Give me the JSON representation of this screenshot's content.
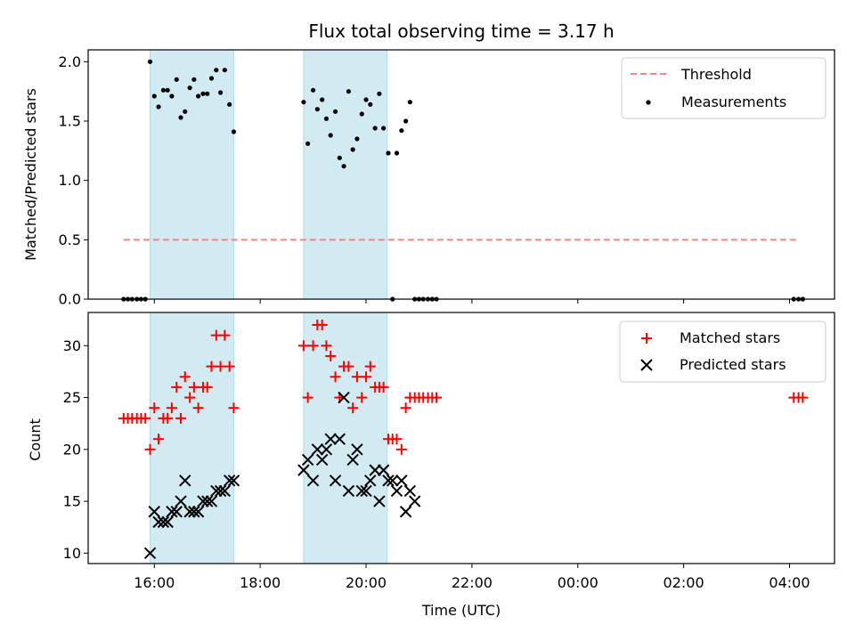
{
  "chart_data": [
    {
      "type": "scatter",
      "title": "Flux total observing time = 3.17 h",
      "xlabel": "",
      "ylabel": "Matched/Predicted stars",
      "x_unit": "hours (UTC, continuing past midnight)",
      "xlim": [
        14.75,
        28.85
      ],
      "ylim": [
        0,
        2.1
      ],
      "yticks": [
        "0.0",
        "0.5",
        "1.0",
        "1.5",
        "2.0"
      ],
      "xticks": [
        "16:00",
        "18:00",
        "20:00",
        "22:00",
        "00:00",
        "02:00",
        "04:00"
      ],
      "shaded_intervals": [
        [
          15.92,
          17.5
        ],
        [
          18.82,
          20.4
        ]
      ],
      "shade_color": "#add8e6",
      "threshold": {
        "label": "Threshold",
        "value": 0.5,
        "x_start": 15.42,
        "x_end": 28.15,
        "color": "#ff7f7f"
      },
      "measurements": {
        "label": "Measurements",
        "color": "#000000",
        "points": [
          [
            15.42,
            0
          ],
          [
            15.5,
            0
          ],
          [
            15.58,
            0
          ],
          [
            15.67,
            0
          ],
          [
            15.75,
            0
          ],
          [
            15.83,
            0
          ],
          [
            15.92,
            2.0
          ],
          [
            16.0,
            1.71
          ],
          [
            16.08,
            1.62
          ],
          [
            16.17,
            1.76
          ],
          [
            16.25,
            1.76
          ],
          [
            16.33,
            1.71
          ],
          [
            16.42,
            1.85
          ],
          [
            16.5,
            1.53
          ],
          [
            16.58,
            1.58
          ],
          [
            16.67,
            1.78
          ],
          [
            16.75,
            1.85
          ],
          [
            16.83,
            1.71
          ],
          [
            16.92,
            1.73
          ],
          [
            17.0,
            1.73
          ],
          [
            17.08,
            1.86
          ],
          [
            17.17,
            1.93
          ],
          [
            17.25,
            1.74
          ],
          [
            17.33,
            1.93
          ],
          [
            17.42,
            1.64
          ],
          [
            17.5,
            1.41
          ],
          [
            18.82,
            1.66
          ],
          [
            18.9,
            1.31
          ],
          [
            19.0,
            1.76
          ],
          [
            19.08,
            1.6
          ],
          [
            19.17,
            1.68
          ],
          [
            19.25,
            1.52
          ],
          [
            19.33,
            1.38
          ],
          [
            19.42,
            1.58
          ],
          [
            19.5,
            1.19
          ],
          [
            19.58,
            1.12
          ],
          [
            19.67,
            1.75
          ],
          [
            19.75,
            1.26
          ],
          [
            19.83,
            1.35
          ],
          [
            19.92,
            1.56
          ],
          [
            20.0,
            1.68
          ],
          [
            20.08,
            1.64
          ],
          [
            20.17,
            1.44
          ],
          [
            20.25,
            1.73
          ],
          [
            20.33,
            1.44
          ],
          [
            20.42,
            1.23
          ],
          [
            20.5,
            0
          ],
          [
            20.58,
            1.23
          ],
          [
            20.67,
            1.42
          ],
          [
            20.75,
            1.5
          ],
          [
            20.83,
            1.66
          ],
          [
            20.92,
            0
          ],
          [
            21.0,
            0
          ],
          [
            21.08,
            0
          ],
          [
            21.17,
            0
          ],
          [
            21.25,
            0
          ],
          [
            21.33,
            0
          ],
          [
            28.08,
            0
          ],
          [
            28.17,
            0
          ],
          [
            28.25,
            0
          ]
        ]
      },
      "legend_placement": "upper right"
    },
    {
      "type": "scatter",
      "title": "",
      "xlabel": "Time (UTC)",
      "ylabel": "Count",
      "x_unit": "hours (UTC, continuing past midnight)",
      "xlim": [
        14.75,
        28.85
      ],
      "ylim": [
        9.0,
        33.2
      ],
      "yticks": [
        "10",
        "15",
        "20",
        "25",
        "30"
      ],
      "xticks": [
        "16:00",
        "18:00",
        "20:00",
        "22:00",
        "00:00",
        "02:00",
        "04:00"
      ],
      "shaded_intervals": [
        [
          15.92,
          17.5
        ],
        [
          18.82,
          20.4
        ]
      ],
      "shade_color": "#add8e6",
      "series": [
        {
          "name": "Matched stars",
          "marker": "plus",
          "color": "#ff0000",
          "points": [
            [
              15.42,
              23
            ],
            [
              15.5,
              23
            ],
            [
              15.58,
              23
            ],
            [
              15.67,
              23
            ],
            [
              15.75,
              23
            ],
            [
              15.83,
              23
            ],
            [
              15.92,
              20
            ],
            [
              16.0,
              24
            ],
            [
              16.08,
              21
            ],
            [
              16.17,
              23
            ],
            [
              16.25,
              23
            ],
            [
              16.33,
              24
            ],
            [
              16.42,
              26
            ],
            [
              16.5,
              23
            ],
            [
              16.58,
              27
            ],
            [
              16.67,
              25
            ],
            [
              16.75,
              26
            ],
            [
              16.83,
              24
            ],
            [
              16.92,
              26
            ],
            [
              17.0,
              26
            ],
            [
              17.08,
              28
            ],
            [
              17.17,
              31
            ],
            [
              17.25,
              28
            ],
            [
              17.33,
              31
            ],
            [
              17.42,
              28
            ],
            [
              17.5,
              24
            ],
            [
              18.82,
              30
            ],
            [
              18.9,
              25
            ],
            [
              19.0,
              30
            ],
            [
              19.08,
              32
            ],
            [
              19.17,
              32
            ],
            [
              19.25,
              30
            ],
            [
              19.33,
              29
            ],
            [
              19.42,
              27
            ],
            [
              19.5,
              25
            ],
            [
              19.58,
              28
            ],
            [
              19.67,
              28
            ],
            [
              19.75,
              24
            ],
            [
              19.83,
              27
            ],
            [
              19.92,
              25
            ],
            [
              20.0,
              27
            ],
            [
              20.08,
              28
            ],
            [
              20.17,
              26
            ],
            [
              20.25,
              26
            ],
            [
              20.33,
              26
            ],
            [
              20.42,
              21
            ],
            [
              20.5,
              21
            ],
            [
              20.58,
              21
            ],
            [
              20.67,
              20
            ],
            [
              20.75,
              24
            ],
            [
              20.83,
              25
            ],
            [
              20.92,
              25
            ],
            [
              21.0,
              25
            ],
            [
              21.08,
              25
            ],
            [
              21.17,
              25
            ],
            [
              21.25,
              25
            ],
            [
              21.33,
              25
            ],
            [
              28.08,
              25
            ],
            [
              28.17,
              25
            ],
            [
              28.25,
              25
            ]
          ]
        },
        {
          "name": "Predicted stars",
          "marker": "x",
          "color": "#000000",
          "points": [
            [
              15.92,
              10
            ],
            [
              16.0,
              14
            ],
            [
              16.08,
              13
            ],
            [
              16.17,
              13
            ],
            [
              16.25,
              13
            ],
            [
              16.33,
              14
            ],
            [
              16.42,
              14
            ],
            [
              16.5,
              15
            ],
            [
              16.58,
              17
            ],
            [
              16.67,
              14
            ],
            [
              16.75,
              14
            ],
            [
              16.83,
              14
            ],
            [
              16.92,
              15
            ],
            [
              17.0,
              15
            ],
            [
              17.08,
              15
            ],
            [
              17.17,
              16
            ],
            [
              17.25,
              16
            ],
            [
              17.33,
              16
            ],
            [
              17.42,
              17
            ],
            [
              17.5,
              17
            ],
            [
              18.82,
              18
            ],
            [
              18.9,
              19
            ],
            [
              19.0,
              17
            ],
            [
              19.08,
              20
            ],
            [
              19.17,
              19
            ],
            [
              19.25,
              20
            ],
            [
              19.33,
              21
            ],
            [
              19.42,
              17
            ],
            [
              19.5,
              21
            ],
            [
              19.58,
              25
            ],
            [
              19.67,
              16
            ],
            [
              19.75,
              19
            ],
            [
              19.83,
              20
            ],
            [
              19.92,
              16
            ],
            [
              20.0,
              16
            ],
            [
              20.08,
              17
            ],
            [
              20.17,
              18
            ],
            [
              20.25,
              15
            ],
            [
              20.33,
              18
            ],
            [
              20.42,
              17
            ],
            [
              20.5,
              17
            ],
            [
              20.58,
              16
            ],
            [
              20.67,
              17
            ],
            [
              20.75,
              14
            ],
            [
              20.83,
              16
            ],
            [
              20.92,
              15
            ]
          ]
        }
      ],
      "legend_placement": "upper right"
    }
  ]
}
